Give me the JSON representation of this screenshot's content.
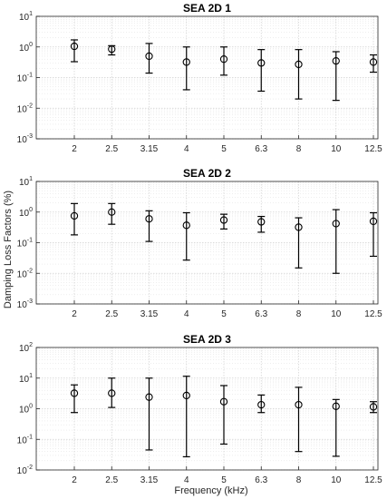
{
  "chart_data": {
    "type": "errorbar",
    "ylabel": "Damping Loss Factors (%)",
    "xlabel": "Frequency (kHz)",
    "categories": [
      "2",
      "2.5",
      "3.15",
      "4",
      "5",
      "6.3",
      "8",
      "10",
      "12.5"
    ],
    "y_scale": "log",
    "grid": true,
    "marker": "circle",
    "color": "#000000",
    "panels": [
      {
        "title": "SEA 2D 1",
        "ylim": [
          0.001,
          10
        ],
        "yticks": [
          "10^-3",
          "10^-2",
          "10^-1",
          "10^0",
          "10^1"
        ],
        "mean": [
          1.05,
          0.85,
          0.5,
          0.32,
          0.4,
          0.3,
          0.27,
          0.35,
          0.32
        ],
        "lower": [
          0.33,
          0.55,
          0.14,
          0.04,
          0.12,
          0.036,
          0.02,
          0.018,
          0.15
        ],
        "upper": [
          1.7,
          1.1,
          1.3,
          1.0,
          1.0,
          0.82,
          0.82,
          0.7,
          0.55
        ]
      },
      {
        "title": "SEA 2D 2",
        "ylim": [
          0.001,
          10
        ],
        "yticks": [
          "10^-3",
          "10^-2",
          "10^-1",
          "10^0",
          "10^1"
        ],
        "mean": [
          0.75,
          1.0,
          0.6,
          0.37,
          0.55,
          0.48,
          0.32,
          0.42,
          0.5
        ],
        "lower": [
          0.18,
          0.4,
          0.11,
          0.027,
          0.28,
          0.22,
          0.015,
          0.01,
          0.036
        ],
        "upper": [
          1.9,
          1.9,
          1.1,
          0.95,
          0.85,
          0.72,
          0.65,
          1.2,
          0.95
        ]
      },
      {
        "title": "SEA 2D 3",
        "ylim": [
          0.01,
          100
        ],
        "yticks": [
          "10^-2",
          "10^-1",
          "10^0",
          "10^1",
          "10^2"
        ],
        "mean": [
          3.2,
          3.2,
          2.4,
          2.7,
          1.7,
          1.35,
          1.35,
          1.2,
          1.15
        ],
        "lower": [
          0.75,
          1.1,
          0.045,
          0.027,
          0.07,
          0.75,
          0.04,
          0.028,
          0.75
        ],
        "upper": [
          6.0,
          10.0,
          10.0,
          11.5,
          5.7,
          2.8,
          5.0,
          2.0,
          1.7
        ]
      }
    ]
  }
}
